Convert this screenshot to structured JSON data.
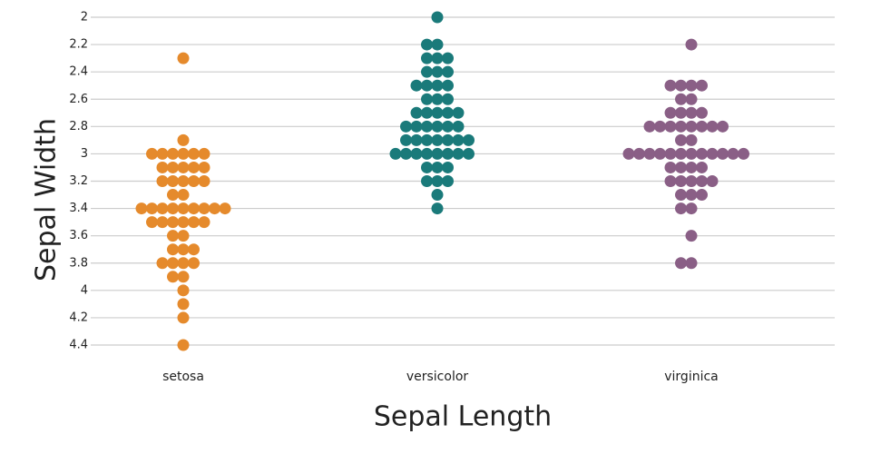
{
  "chart_data": {
    "type": "strip",
    "x_label": "Sepal Length",
    "y_label": "Sepal Width",
    "categories": [
      "setosa",
      "versicolor",
      "virginica"
    ],
    "series": [
      {
        "color": "#e58a2c",
        "values": [
          3.5,
          3.0,
          3.2,
          3.1,
          3.6,
          3.9,
          3.4,
          3.4,
          2.9,
          3.1,
          3.7,
          3.4,
          3.0,
          3.0,
          4.0,
          4.4,
          3.9,
          3.5,
          3.8,
          3.8,
          3.4,
          3.7,
          3.6,
          3.3,
          3.4,
          3.0,
          3.4,
          3.5,
          3.4,
          3.2,
          3.1,
          3.4,
          4.1,
          4.2,
          3.1,
          3.2,
          3.5,
          3.1,
          3.0,
          3.4,
          3.5,
          2.3,
          3.2,
          3.5,
          3.8,
          3.0,
          3.8,
          3.2,
          3.7,
          3.3
        ]
      },
      {
        "color": "#1a7a7a",
        "values": [
          3.2,
          3.2,
          3.1,
          2.3,
          2.8,
          2.8,
          3.3,
          2.4,
          2.9,
          2.7,
          2.0,
          3.0,
          2.2,
          2.9,
          2.9,
          3.1,
          3.0,
          2.7,
          2.2,
          2.5,
          3.2,
          2.8,
          2.5,
          2.8,
          2.9,
          3.0,
          2.8,
          3.0,
          2.9,
          2.6,
          2.4,
          2.4,
          2.7,
          2.7,
          3.0,
          3.4,
          3.1,
          2.3,
          3.0,
          2.5,
          2.6,
          3.0,
          2.6,
          2.3,
          2.7,
          3.0,
          2.9,
          2.9,
          2.5,
          2.8
        ]
      },
      {
        "color": "#8a5f86",
        "values": [
          3.3,
          2.7,
          3.0,
          2.9,
          3.0,
          3.0,
          2.5,
          2.9,
          2.5,
          3.6,
          3.2,
          2.7,
          3.0,
          2.5,
          2.8,
          3.2,
          3.0,
          3.8,
          2.6,
          2.2,
          3.2,
          2.8,
          2.8,
          2.7,
          3.3,
          3.2,
          2.8,
          3.0,
          2.8,
          3.0,
          2.8,
          3.8,
          2.8,
          2.8,
          2.6,
          3.0,
          3.4,
          3.1,
          3.0,
          3.1,
          3.1,
          3.1,
          2.7,
          3.2,
          3.3,
          3.0,
          2.5,
          3.0,
          3.4,
          3.0
        ]
      }
    ],
    "ylim": [
      2,
      4.4
    ],
    "y_reversed": true,
    "yticks": [
      2,
      2.2,
      2.4,
      2.6,
      2.8,
      3,
      3.2,
      3.4,
      3.6,
      3.8,
      4,
      4.2,
      4.4
    ],
    "grid": true
  }
}
